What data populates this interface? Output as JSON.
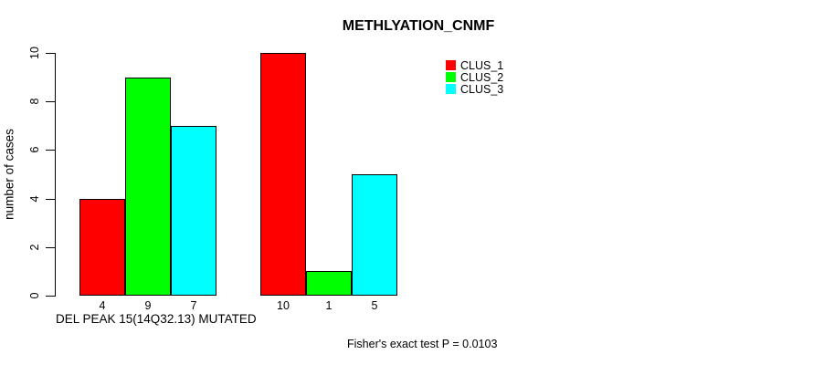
{
  "title": "METHLYATION_CNMF",
  "footer": {
    "annotation": "Fisher's exact test P = 0.0103"
  },
  "chart_data": {
    "type": "bar",
    "title": "METHLYATION_CNMF",
    "xlabel": "DEL PEAK 15(14Q32.13) MUTATED",
    "ylabel": "number of cases",
    "ylim": [
      0,
      10
    ],
    "yticks": [
      0,
      2,
      4,
      6,
      8,
      10
    ],
    "grid": false,
    "legend_position": "top-right",
    "series": [
      {
        "name": "CLUS_1",
        "color": "#ff0000",
        "values": [
          4,
          10
        ]
      },
      {
        "name": "CLUS_2",
        "color": "#00ff00",
        "values": [
          9,
          1
        ]
      },
      {
        "name": "CLUS_3",
        "color": "#00ffff",
        "values": [
          7,
          5
        ]
      }
    ],
    "bar_labels": [
      [
        "4",
        "9",
        "7"
      ],
      [
        "10",
        "1",
        "5"
      ]
    ],
    "annotation": "Fisher's exact test P = 0.0103"
  }
}
